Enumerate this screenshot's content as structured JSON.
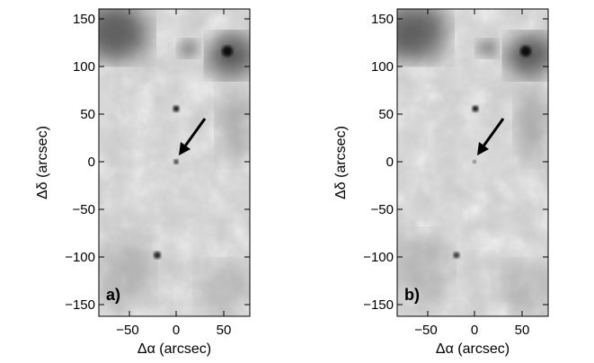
{
  "figure": {
    "panels": [
      {
        "panel_label": "a)",
        "xlabel": "Δα (arcsec)",
        "ylabel": "Δδ (arcsec)",
        "xticks": [
          "−50",
          "0",
          "50"
        ],
        "yticks": [
          "150",
          "100",
          "50",
          "0",
          "−50",
          "−100",
          "−150"
        ]
      },
      {
        "panel_label": "b)",
        "xlabel": "Δα (arcsec)",
        "ylabel": "Δδ (arcsec)",
        "xticks": [
          "−50",
          "0",
          "50"
        ],
        "yticks": [
          "150",
          "100",
          "50",
          "0",
          "−50",
          "−100",
          "−150"
        ]
      }
    ],
    "image_kind": "grayscale astronomical map with arrow pointing at central source",
    "colors": {
      "background": "#ffffff",
      "frame": "#000000",
      "arrow": "#000000"
    }
  }
}
